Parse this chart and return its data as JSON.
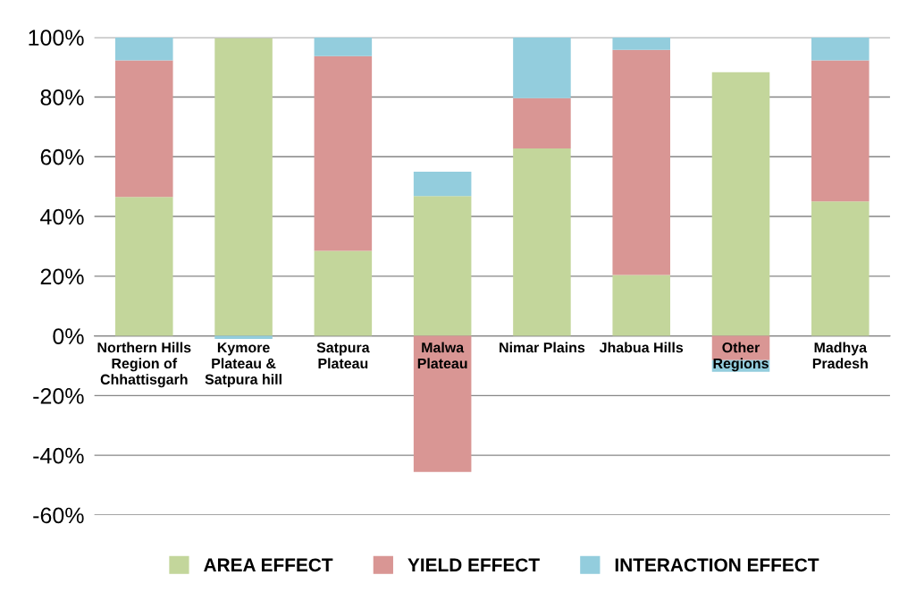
{
  "chart_data": {
    "type": "bar",
    "stacked": true,
    "categories": [
      "Northern Hills\nRegion of\nChhattisgarh",
      "Kymore\nPlateau &\nSatpura hill",
      "Satpura\nPlateau",
      "Malwa\nPlateau",
      "Nimar Plains",
      "Jhabua Hills",
      "Other\nRegions",
      "Madhya\nPradesh"
    ],
    "series": [
      {
        "name": "AREA EFFECT",
        "color": "#c3d69b",
        "values": [
          46.5,
          99.7,
          28.5,
          46.8,
          62.8,
          20.4,
          88.3,
          45.0
        ]
      },
      {
        "name": "YIELD EFFECT",
        "color": "#d99694",
        "values": [
          45.8,
          0,
          65.2,
          -45.6,
          16.8,
          75.4,
          -8.1,
          47.3
        ]
      },
      {
        "name": "INTERACTION EFFECT",
        "color": "#93cddd",
        "values": [
          7.7,
          -1.0,
          6.3,
          8.2,
          20.4,
          4.2,
          -3.9,
          7.7
        ]
      }
    ],
    "ylim": [
      -60,
      100
    ],
    "yticks": [
      {
        "value": -60,
        "label": "-60%"
      },
      {
        "value": -40,
        "label": "-40%"
      },
      {
        "value": -20,
        "label": "-20%"
      },
      {
        "value": 0,
        "label": "0%"
      },
      {
        "value": 20,
        "label": "20%"
      },
      {
        "value": 40,
        "label": "40%"
      },
      {
        "value": 60,
        "label": "60%"
      },
      {
        "value": 80,
        "label": "80%"
      },
      {
        "value": 100,
        "label": "100%"
      }
    ],
    "grid": "y",
    "legend": "bottom"
  }
}
